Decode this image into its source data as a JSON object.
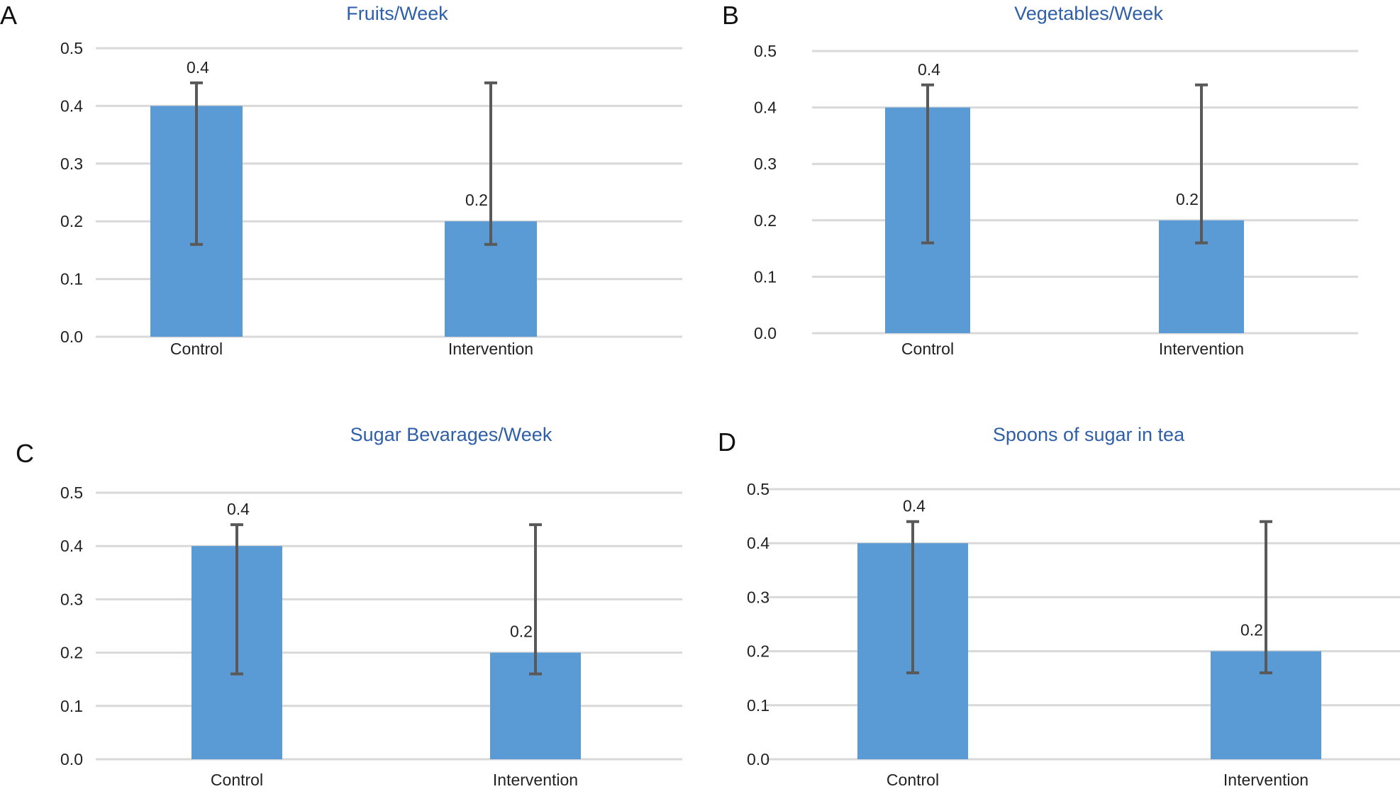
{
  "chart_data": [
    {
      "type": "bar",
      "panel_label": "A",
      "title": "Fruits/Week",
      "categories": [
        "Control",
        "Intervention"
      ],
      "values": [
        0.4,
        0.2
      ],
      "data_labels": [
        "0.4",
        "0.2"
      ],
      "error_bars": [
        {
          "low": 0.16,
          "high": 0.44
        },
        {
          "low": 0.16,
          "high": 0.44
        }
      ],
      "ylim": [
        0.0,
        0.5
      ],
      "yticks": [
        "0.0",
        "0.1",
        "0.2",
        "0.3",
        "0.4",
        "0.5"
      ],
      "xlabel": "",
      "ylabel": "",
      "grid": true
    },
    {
      "type": "bar",
      "panel_label": "B",
      "title": "Vegetables/Week",
      "categories": [
        "Control",
        "Intervention"
      ],
      "values": [
        0.4,
        0.2
      ],
      "data_labels": [
        "0.4",
        "0.2"
      ],
      "error_bars": [
        {
          "low": 0.16,
          "high": 0.44
        },
        {
          "low": 0.16,
          "high": 0.44
        }
      ],
      "ylim": [
        0.0,
        0.5
      ],
      "yticks": [
        "0.0",
        "0.1",
        "0.2",
        "0.3",
        "0.4",
        "0.5"
      ],
      "xlabel": "",
      "ylabel": "",
      "grid": true
    },
    {
      "type": "bar",
      "panel_label": "C",
      "title": "Sugar Bevarages/Week",
      "categories": [
        "Control",
        "Intervention"
      ],
      "values": [
        0.4,
        0.2
      ],
      "data_labels": [
        "0.4",
        "0.2"
      ],
      "error_bars": [
        {
          "low": 0.16,
          "high": 0.44
        },
        {
          "low": 0.16,
          "high": 0.44
        }
      ],
      "ylim": [
        0.0,
        0.5
      ],
      "yticks": [
        "0.0",
        "0.1",
        "0.2",
        "0.3",
        "0.4",
        "0.5"
      ],
      "xlabel": "",
      "ylabel": "",
      "grid": true
    },
    {
      "type": "bar",
      "panel_label": "D",
      "title": "Spoons of sugar in tea",
      "categories": [
        "Control",
        "Intervention"
      ],
      "values": [
        0.4,
        0.2
      ],
      "data_labels": [
        "0.4",
        "0.2"
      ],
      "error_bars": [
        {
          "low": 0.16,
          "high": 0.44
        },
        {
          "low": 0.16,
          "high": 0.44
        }
      ],
      "ylim": [
        0.0,
        0.5
      ],
      "yticks": [
        "0.0",
        "0.1",
        "0.2",
        "0.3",
        "0.4",
        "0.5"
      ],
      "xlabel": "",
      "ylabel": "",
      "grid": true
    }
  ],
  "colors": {
    "bar": "#5b9bd5",
    "error_bar": "#595959",
    "grid": "#d9d9d9",
    "title": "#2f5fa8",
    "text": "#222222"
  }
}
